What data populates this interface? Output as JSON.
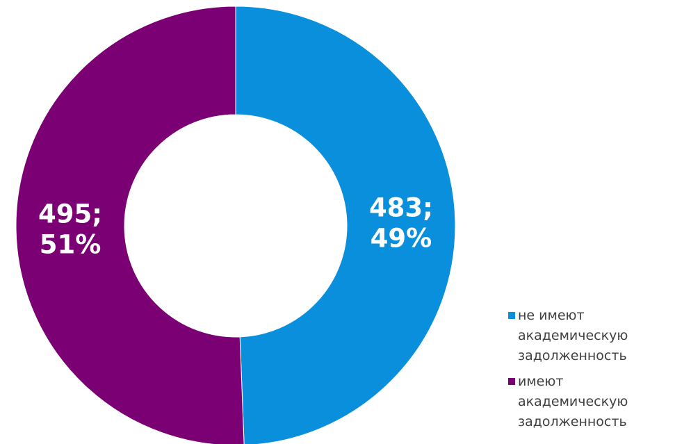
{
  "chart_data": {
    "type": "donut",
    "categories": [
      "не имеют академическую задолженность",
      "имеют академическую задолженность"
    ],
    "values": [
      483,
      495
    ],
    "value_labels": [
      [
        "483;",
        "49%"
      ],
      [
        "495;",
        "51%"
      ]
    ],
    "colors": [
      "#0a8fdc",
      "#7b0073"
    ],
    "legend": "right"
  }
}
